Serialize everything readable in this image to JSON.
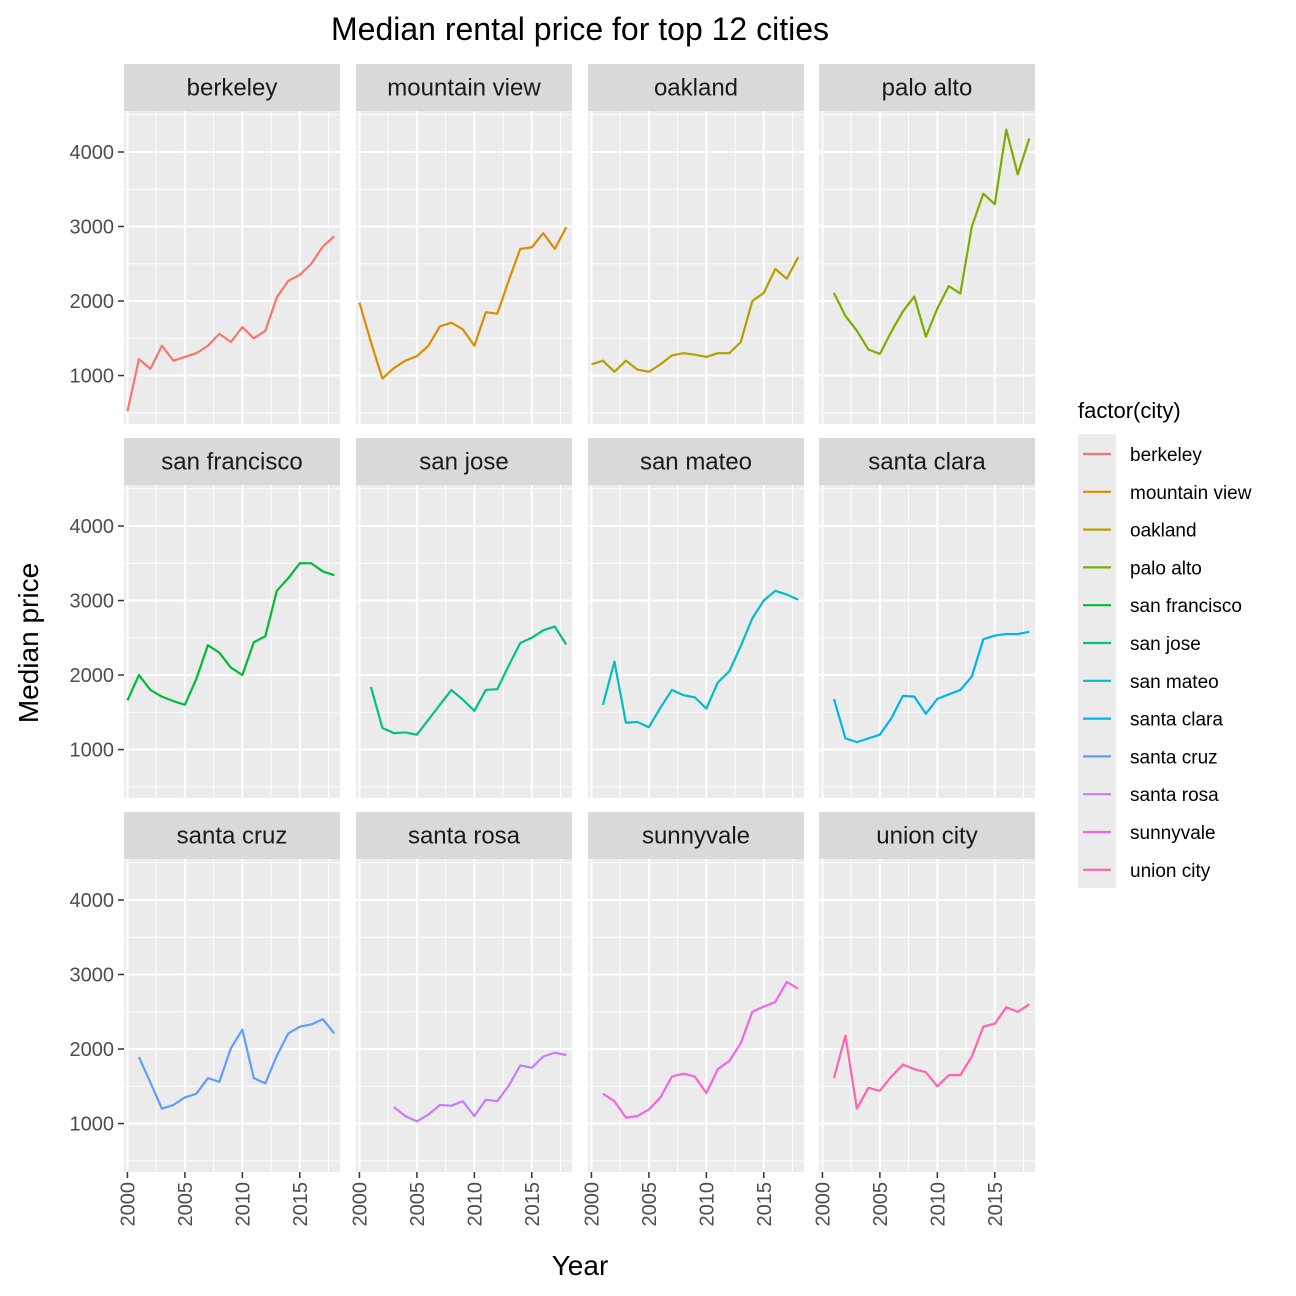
{
  "chart_data": {
    "type": "line",
    "title": "Median rental price for top 12 cities",
    "xlabel": "Year",
    "ylabel": "Median price",
    "xlim": [
      1999.7,
      2018.5
    ],
    "ylim": [
      350,
      4550
    ],
    "x_ticks": [
      2000,
      2005,
      2010,
      2015
    ],
    "y_ticks": [
      1000,
      2000,
      3000,
      4000
    ],
    "facet_layout": {
      "rows": 3,
      "cols": 4,
      "shared_axes": true
    },
    "grid": true,
    "legend": {
      "title": "factor(city)",
      "position": "right"
    },
    "series": [
      {
        "name": "berkeley",
        "color": "#F8766D",
        "x": [
          2000,
          2001,
          2002,
          2003,
          2004,
          2005,
          2006,
          2007,
          2008,
          2009,
          2010,
          2011,
          2012,
          2013,
          2014,
          2015,
          2016,
          2017,
          2018
        ],
        "y": [
          520,
          1220,
          1090,
          1400,
          1200,
          1250,
          1300,
          1400,
          1560,
          1450,
          1650,
          1500,
          1600,
          2050,
          2270,
          2350,
          2500,
          2730,
          2870
        ]
      },
      {
        "name": "mountain view",
        "color": "#DE8C00",
        "x": [
          2000,
          2001,
          2002,
          2003,
          2004,
          2005,
          2006,
          2007,
          2008,
          2009,
          2010,
          2011,
          2012,
          2013,
          2014,
          2015,
          2016,
          2017,
          2018
        ],
        "y": [
          1980,
          1450,
          960,
          1100,
          1200,
          1260,
          1400,
          1660,
          1710,
          1620,
          1400,
          1850,
          1830,
          2280,
          2700,
          2720,
          2910,
          2700,
          2990
        ]
      },
      {
        "name": "oakland",
        "color": "#B79F00",
        "x": [
          2000,
          2001,
          2002,
          2003,
          2004,
          2005,
          2006,
          2007,
          2008,
          2009,
          2010,
          2011,
          2012,
          2013,
          2014,
          2015,
          2016,
          2017,
          2018
        ],
        "y": [
          1150,
          1200,
          1050,
          1200,
          1080,
          1050,
          1150,
          1270,
          1300,
          1280,
          1250,
          1300,
          1300,
          1450,
          2000,
          2110,
          2430,
          2300,
          2590
        ]
      },
      {
        "name": "palo alto",
        "color": "#7CAE00",
        "x": [
          2001,
          2002,
          2003,
          2004,
          2005,
          2006,
          2007,
          2008,
          2009,
          2010,
          2011,
          2012,
          2013,
          2014,
          2015,
          2016,
          2017,
          2018
        ],
        "y": [
          2110,
          1800,
          1600,
          1350,
          1290,
          1590,
          1860,
          2060,
          1520,
          1900,
          2200,
          2100,
          3000,
          3440,
          3300,
          4300,
          3700,
          4180
        ]
      },
      {
        "name": "san francisco",
        "color": "#00BA38",
        "x": [
          2000,
          2001,
          2002,
          2003,
          2004,
          2005,
          2006,
          2007,
          2008,
          2009,
          2010,
          2011,
          2012,
          2013,
          2014,
          2015,
          2016,
          2017,
          2018
        ],
        "y": [
          1660,
          2000,
          1800,
          1710,
          1650,
          1600,
          1950,
          2400,
          2300,
          2100,
          2000,
          2440,
          2520,
          3130,
          3300,
          3500,
          3500,
          3390,
          3340
        ]
      },
      {
        "name": "san jose",
        "color": "#00C08B",
        "x": [
          2001,
          2002,
          2003,
          2004,
          2005,
          2006,
          2007,
          2008,
          2009,
          2010,
          2011,
          2012,
          2013,
          2014,
          2015,
          2016,
          2017,
          2018
        ],
        "y": [
          1840,
          1290,
          1220,
          1230,
          1200,
          1400,
          1600,
          1800,
          1670,
          1520,
          1800,
          1810,
          2130,
          2430,
          2500,
          2600,
          2650,
          2410
        ]
      },
      {
        "name": "san mateo",
        "color": "#00BFC4",
        "x": [
          2001,
          2002,
          2003,
          2004,
          2005,
          2006,
          2007,
          2008,
          2009,
          2010,
          2011,
          2012,
          2013,
          2014,
          2015,
          2016,
          2017,
          2018
        ],
        "y": [
          1600,
          2180,
          1360,
          1370,
          1300,
          1560,
          1800,
          1730,
          1700,
          1550,
          1900,
          2050,
          2390,
          2760,
          3000,
          3130,
          3080,
          3010
        ]
      },
      {
        "name": "santa clara",
        "color": "#00B4F0",
        "x": [
          2001,
          2002,
          2003,
          2004,
          2005,
          2006,
          2007,
          2008,
          2009,
          2010,
          2011,
          2012,
          2013,
          2014,
          2015,
          2016,
          2017,
          2018
        ],
        "y": [
          1680,
          1150,
          1100,
          1150,
          1200,
          1420,
          1720,
          1710,
          1480,
          1680,
          1740,
          1800,
          1980,
          2480,
          2530,
          2550,
          2550,
          2580
        ]
      },
      {
        "name": "santa cruz",
        "color": "#619CFF",
        "x": [
          2001,
          2002,
          2003,
          2004,
          2005,
          2006,
          2007,
          2008,
          2009,
          2010,
          2011,
          2012,
          2013,
          2014,
          2015,
          2016,
          2017,
          2018
        ],
        "y": [
          1890,
          1550,
          1200,
          1250,
          1350,
          1400,
          1610,
          1560,
          2010,
          2260,
          1610,
          1540,
          1910,
          2210,
          2300,
          2330,
          2400,
          2210
        ]
      },
      {
        "name": "santa rosa",
        "color": "#C77CFF",
        "x": [
          2003,
          2004,
          2005,
          2006,
          2007,
          2008,
          2009,
          2010,
          2011,
          2012,
          2013,
          2014,
          2015,
          2016,
          2017,
          2018
        ],
        "y": [
          1220,
          1100,
          1030,
          1120,
          1250,
          1240,
          1300,
          1100,
          1320,
          1300,
          1510,
          1780,
          1750,
          1900,
          1950,
          1920
        ]
      },
      {
        "name": "sunnyvale",
        "color": "#F564E3",
        "x": [
          2001,
          2002,
          2003,
          2004,
          2005,
          2006,
          2007,
          2008,
          2009,
          2010,
          2011,
          2012,
          2013,
          2014,
          2015,
          2016,
          2017,
          2018
        ],
        "y": [
          1400,
          1300,
          1080,
          1100,
          1190,
          1350,
          1630,
          1670,
          1630,
          1410,
          1730,
          1840,
          2080,
          2500,
          2570,
          2630,
          2900,
          2810
        ]
      },
      {
        "name": "union city",
        "color": "#FF64B0",
        "x": [
          2001,
          2002,
          2003,
          2004,
          2005,
          2006,
          2007,
          2008,
          2009,
          2010,
          2011,
          2012,
          2013,
          2014,
          2015,
          2016,
          2017,
          2018
        ],
        "y": [
          1610,
          2180,
          1200,
          1480,
          1440,
          1630,
          1790,
          1730,
          1690,
          1500,
          1650,
          1650,
          1900,
          2300,
          2340,
          2560,
          2500,
          2600
        ]
      }
    ]
  }
}
